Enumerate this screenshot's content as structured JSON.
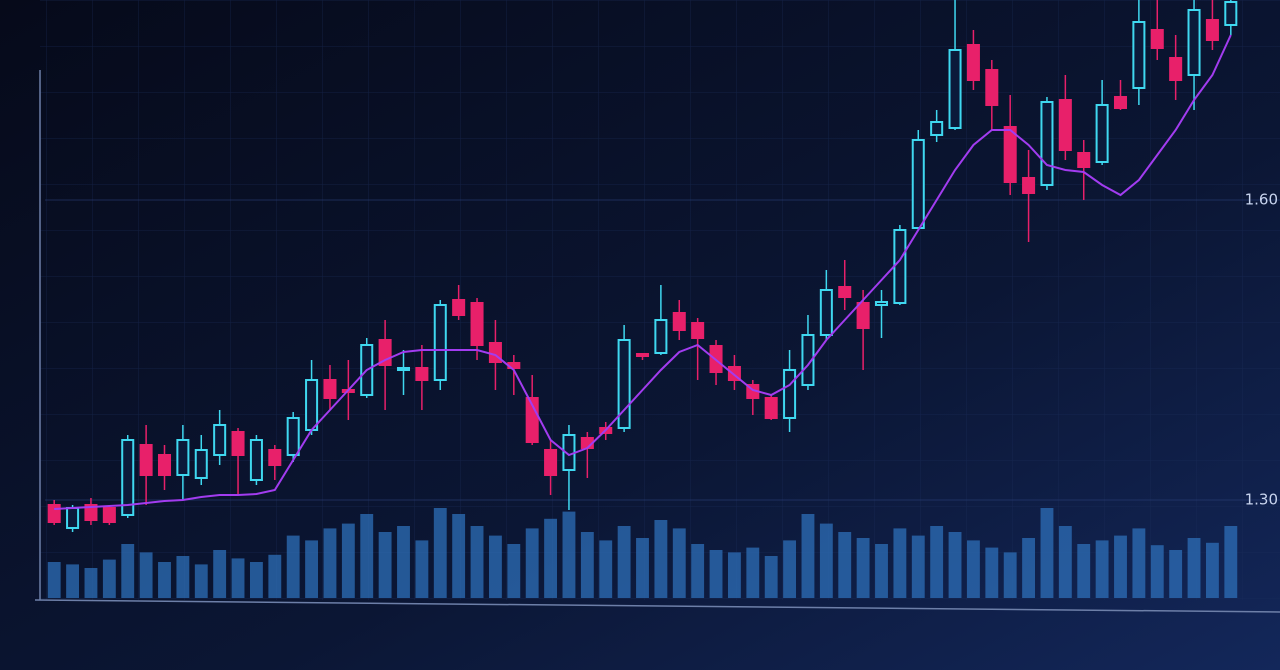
{
  "chart_data": {
    "type": "candlestick",
    "up_color": "#3fd8f0",
    "down_color": "#e8206a",
    "ma_color": "#a23cf0",
    "volume_color": "#2d6fb8",
    "ylim": [
      1.2,
      1.8
    ],
    "yticks": [
      {
        "value": 1.6,
        "label": "1.60"
      },
      {
        "value": 1.3,
        "label": "1.30"
      }
    ],
    "y2lim": [
      0,
      100
    ],
    "grid": true,
    "open": [
      1.295,
      1.272,
      1.295,
      1.292,
      1.285,
      1.355,
      1.345,
      1.325,
      1.322,
      1.345,
      1.368,
      1.32,
      1.35,
      1.345,
      1.37,
      1.42,
      1.41,
      1.405,
      1.46,
      1.43,
      1.432,
      1.42,
      1.5,
      1.497,
      1.457,
      1.437,
      1.402,
      1.35,
      1.33,
      1.362,
      1.372,
      1.372,
      1.446,
      1.447,
      1.487,
      1.477,
      1.454,
      1.433,
      1.415,
      1.402,
      1.382,
      1.415,
      1.465,
      1.513,
      1.497,
      1.495,
      1.497,
      1.572,
      1.665,
      1.672,
      1.755,
      1.73,
      1.673,
      1.622,
      1.615,
      1.7,
      1.647,
      1.638,
      1.703,
      1.712,
      1.77,
      1.742,
      1.725,
      1.78,
      1.775
    ],
    "high": [
      1.3,
      1.295,
      1.302,
      1.295,
      1.365,
      1.375,
      1.355,
      1.375,
      1.365,
      1.39,
      1.372,
      1.365,
      1.355,
      1.388,
      1.44,
      1.435,
      1.44,
      1.462,
      1.48,
      1.45,
      1.455,
      1.5,
      1.515,
      1.502,
      1.48,
      1.445,
      1.425,
      1.36,
      1.375,
      1.368,
      1.378,
      1.475,
      1.447,
      1.515,
      1.5,
      1.482,
      1.46,
      1.445,
      1.42,
      1.405,
      1.45,
      1.485,
      1.53,
      1.54,
      1.51,
      1.51,
      1.575,
      1.67,
      1.69,
      1.8,
      1.77,
      1.74,
      1.705,
      1.65,
      1.703,
      1.725,
      1.66,
      1.72,
      1.72,
      1.8,
      1.8,
      1.765,
      1.8,
      1.8,
      1.8
    ],
    "low": [
      1.275,
      1.268,
      1.275,
      1.275,
      1.282,
      1.295,
      1.31,
      1.3,
      1.315,
      1.335,
      1.305,
      1.315,
      1.32,
      1.338,
      1.365,
      1.39,
      1.38,
      1.402,
      1.39,
      1.405,
      1.39,
      1.41,
      1.48,
      1.44,
      1.41,
      1.405,
      1.355,
      1.305,
      1.29,
      1.322,
      1.36,
      1.368,
      1.44,
      1.445,
      1.46,
      1.42,
      1.415,
      1.41,
      1.385,
      1.38,
      1.368,
      1.41,
      1.46,
      1.49,
      1.43,
      1.462,
      1.495,
      1.57,
      1.658,
      1.67,
      1.71,
      1.67,
      1.605,
      1.558,
      1.61,
      1.64,
      1.6,
      1.635,
      1.69,
      1.695,
      1.74,
      1.7,
      1.69,
      1.75,
      1.765
    ],
    "close": [
      1.278,
      1.292,
      1.28,
      1.278,
      1.36,
      1.325,
      1.325,
      1.36,
      1.35,
      1.375,
      1.345,
      1.36,
      1.335,
      1.382,
      1.42,
      1.402,
      1.408,
      1.455,
      1.435,
      1.432,
      1.42,
      1.495,
      1.485,
      1.455,
      1.438,
      1.432,
      1.358,
      1.325,
      1.365,
      1.352,
      1.367,
      1.46,
      1.444,
      1.48,
      1.47,
      1.462,
      1.428,
      1.42,
      1.402,
      1.382,
      1.43,
      1.465,
      1.51,
      1.503,
      1.472,
      1.498,
      1.57,
      1.66,
      1.678,
      1.75,
      1.72,
      1.695,
      1.618,
      1.607,
      1.698,
      1.65,
      1.633,
      1.695,
      1.692,
      1.778,
      1.752,
      1.72,
      1.79,
      1.76,
      1.798
    ],
    "ma": [
      1.291,
      1.292,
      1.293,
      1.294,
      1.295,
      1.297,
      1.299,
      1.3,
      1.303,
      1.305,
      1.305,
      1.306,
      1.31,
      1.34,
      1.37,
      1.39,
      1.41,
      1.43,
      1.44,
      1.448,
      1.45,
      1.45,
      1.45,
      1.45,
      1.445,
      1.43,
      1.395,
      1.36,
      1.345,
      1.352,
      1.37,
      1.39,
      1.41,
      1.43,
      1.448,
      1.455,
      1.44,
      1.425,
      1.41,
      1.405,
      1.415,
      1.435,
      1.46,
      1.48,
      1.5,
      1.52,
      1.54,
      1.57,
      1.6,
      1.63,
      1.655,
      1.67,
      1.67,
      1.655,
      1.635,
      1.63,
      1.628,
      1.615,
      1.605,
      1.62,
      1.645,
      1.67,
      1.7,
      1.725,
      1.765
    ],
    "volume": [
      30,
      28,
      25,
      32,
      45,
      38,
      30,
      35,
      28,
      40,
      33,
      30,
      36,
      52,
      48,
      58,
      62,
      70,
      55,
      60,
      48,
      75,
      70,
      60,
      52,
      45,
      58,
      66,
      72,
      55,
      48,
      60,
      50,
      65,
      58,
      45,
      40,
      38,
      42,
      35,
      48,
      70,
      62,
      55,
      50,
      45,
      58,
      52,
      60,
      55,
      48,
      42,
      38,
      50,
      75,
      60,
      45,
      48,
      52,
      58,
      44,
      40,
      50,
      46,
      60
    ]
  }
}
